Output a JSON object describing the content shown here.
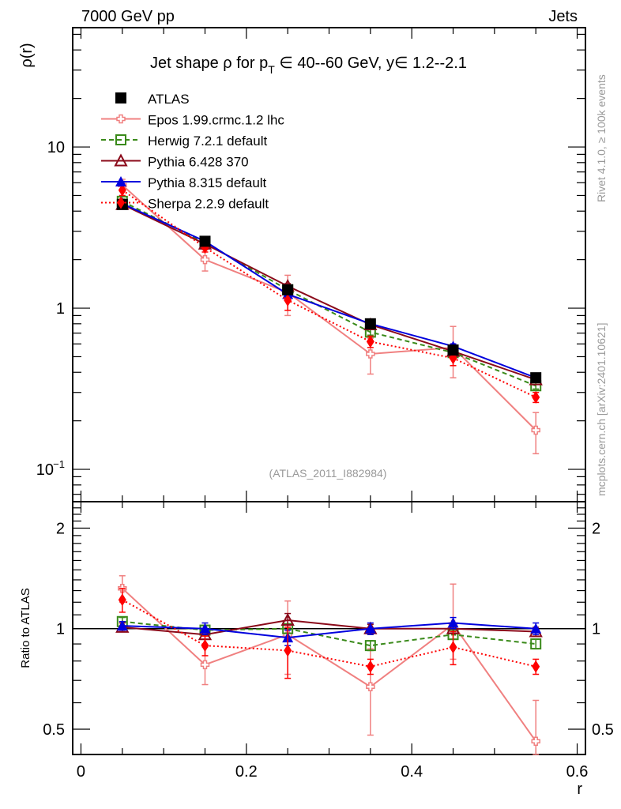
{
  "header": {
    "left": "7000 GeV pp",
    "right": "Jets"
  },
  "side_labels": {
    "rivet": "Rivet 4.1.0, ≥ 100k events",
    "mcplots": "mcplots.cern.ch [arXiv:2401.10621]"
  },
  "chart_data": [
    {
      "type": "line",
      "panel": "main",
      "title": "Jet shape ρ for p_T ∈ 40--60 GeV, y∈ 1.2--2.1",
      "title_parts": {
        "pre": "Jet shape ρ for p",
        "sub": "T",
        "post": " ∈ 40--60 GeV, y∈ 1.2--2.1"
      },
      "xlabel": "r",
      "ylabel": "ρ(r)",
      "yscale": "log",
      "xlim": [
        -0.01,
        0.61
      ],
      "ylim": [
        0.063,
        55
      ],
      "yticks": [
        {
          "value": 10,
          "label": "10"
        },
        {
          "value": 1,
          "label": "1"
        },
        {
          "value": 0.1,
          "label": "10",
          "sup": "−1"
        }
      ],
      "annotation": "(ATLAS_2011_I882984)",
      "legend_position": "top-left",
      "x": [
        0.05,
        0.15,
        0.25,
        0.35,
        0.45,
        0.55
      ],
      "series": [
        {
          "name": "ATLAS",
          "color": "#000000",
          "marker": "square-filled",
          "line": "none",
          "values": [
            4.4,
            2.6,
            1.3,
            0.8,
            0.55,
            0.37
          ]
        },
        {
          "name": "Epos 1.99.crmc.1.2 lhc",
          "color": "#f08080",
          "marker": "cross-open",
          "line": "solid",
          "values": [
            5.8,
            2.0,
            1.25,
            0.52,
            0.57,
            0.175
          ],
          "err": [
            0.5,
            0.3,
            0.35,
            0.13,
            0.2,
            0.05
          ]
        },
        {
          "name": "Herwig 7.2.1 default",
          "color": "#3a8a1a",
          "marker": "square-open",
          "line": "dashed",
          "values": [
            4.6,
            2.55,
            1.3,
            0.71,
            0.53,
            0.33
          ],
          "err": [
            0.15,
            0.08,
            0.05,
            0.03,
            0.02,
            0.015
          ]
        },
        {
          "name": "Pythia 6.428 370",
          "color": "#8b0a1a",
          "marker": "triangle-open",
          "line": "solid",
          "values": [
            4.4,
            2.5,
            1.37,
            0.79,
            0.54,
            0.36
          ],
          "err": [
            0.1,
            0.06,
            0.05,
            0.02,
            0.02,
            0.01
          ]
        },
        {
          "name": "Pythia 8.315 default",
          "color": "#0000dd",
          "marker": "triangle-filled",
          "line": "solid",
          "values": [
            4.45,
            2.6,
            1.22,
            0.8,
            0.58,
            0.37
          ],
          "err": [
            0.1,
            0.06,
            0.05,
            0.02,
            0.02,
            0.01
          ]
        },
        {
          "name": "Sherpa 2.2.9 default",
          "color": "#ff0000",
          "marker": "diamond-filled",
          "line": "dotted",
          "values": [
            5.4,
            2.38,
            1.12,
            0.62,
            0.49,
            0.28
          ],
          "err": [
            0.4,
            0.15,
            0.15,
            0.05,
            0.05,
            0.02
          ]
        }
      ]
    },
    {
      "type": "line",
      "panel": "ratio",
      "xlabel": "r",
      "ylabel": "Ratio to ATLAS",
      "yscale": "log",
      "xlim": [
        -0.01,
        0.61
      ],
      "ylim": [
        0.42,
        2.4
      ],
      "yticks": [
        {
          "value": 2,
          "label": "2"
        },
        {
          "value": 1,
          "label": "1"
        },
        {
          "value": 0.5,
          "label": "0.5"
        }
      ],
      "xticks": [
        {
          "value": 0,
          "label": "0"
        },
        {
          "value": 0.2,
          "label": "0.2"
        },
        {
          "value": 0.4,
          "label": "0.4"
        },
        {
          "value": 0.6,
          "label": "0.6"
        }
      ],
      "reference_line": 1,
      "x": [
        0.05,
        0.15,
        0.25,
        0.35,
        0.45,
        0.55
      ],
      "series": [
        {
          "name": "Epos 1.99.crmc.1.2 lhc",
          "color": "#f08080",
          "marker": "cross-open",
          "line": "solid",
          "values": [
            1.32,
            0.78,
            0.96,
            0.67,
            1.03,
            0.46
          ],
          "err_low": [
            0.12,
            0.1,
            0.23,
            0.19,
            0.22,
            0.1
          ],
          "err_high": [
            0.12,
            0.1,
            0.25,
            0.2,
            0.33,
            0.15
          ]
        },
        {
          "name": "Herwig 7.2.1 default",
          "color": "#3a8a1a",
          "marker": "square-open",
          "line": "dashed",
          "values": [
            1.05,
            0.99,
            1.0,
            0.89,
            0.96,
            0.9
          ],
          "err_low": [
            0.03,
            0.03,
            0.03,
            0.03,
            0.03,
            0.03
          ],
          "err_high": [
            0.03,
            0.03,
            0.03,
            0.03,
            0.03,
            0.03
          ]
        },
        {
          "name": "Pythia 6.428 370",
          "color": "#8b0a1a",
          "marker": "triangle-open",
          "line": "solid",
          "values": [
            1.01,
            0.96,
            1.06,
            1.0,
            1.0,
            0.98
          ],
          "err_low": [
            0.03,
            0.03,
            0.05,
            0.03,
            0.03,
            0.03
          ],
          "err_high": [
            0.03,
            0.03,
            0.05,
            0.03,
            0.03,
            0.03
          ]
        },
        {
          "name": "Pythia 8.315 default",
          "color": "#0000dd",
          "marker": "triangle-filled",
          "line": "solid",
          "values": [
            1.02,
            1.0,
            0.94,
            1.0,
            1.04,
            1.0
          ],
          "err_low": [
            0.03,
            0.04,
            0.05,
            0.04,
            0.04,
            0.04
          ],
          "err_high": [
            0.03,
            0.04,
            0.05,
            0.04,
            0.04,
            0.04
          ]
        },
        {
          "name": "Sherpa 2.2.9 default",
          "color": "#ff0000",
          "marker": "diamond-filled",
          "line": "dotted",
          "values": [
            1.22,
            0.89,
            0.86,
            0.77,
            0.88,
            0.77
          ],
          "err_low": [
            0.1,
            0.06,
            0.15,
            0.04,
            0.1,
            0.04
          ],
          "err_high": [
            0.1,
            0.06,
            0.15,
            0.04,
            0.1,
            0.04
          ]
        }
      ]
    }
  ]
}
